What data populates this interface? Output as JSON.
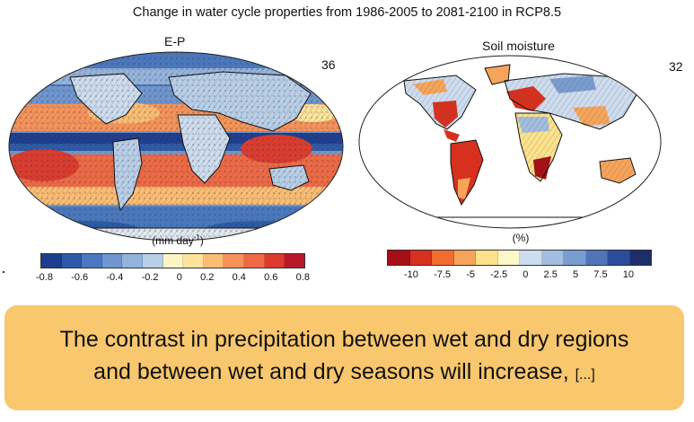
{
  "header": {
    "title": "Change in water cycle properties from 1986-2005 to 2081-2100 in RCP8.5"
  },
  "left_panel": {
    "title": "E-P",
    "number": "36",
    "unit_main": "(mm day",
    "unit_sup": "-1",
    "unit_close": ")",
    "colorbar_colors": [
      "#1f3d8f",
      "#2d5aa8",
      "#4a78bf",
      "#6f96cf",
      "#94b3dc",
      "#b9cfe8",
      "#fbf6c4",
      "#fde39a",
      "#fbbd73",
      "#f7935a",
      "#ee6a45",
      "#dc3b2e",
      "#b8182a"
    ],
    "tick_labels": [
      "-0.8",
      "-0.6",
      "-0.4",
      "-0.2",
      "0",
      "0.2",
      "0.4",
      "0.6",
      "0.8"
    ]
  },
  "right_panel": {
    "title": "Soil moisture",
    "number": "32",
    "unit": "(%)",
    "colorbar_colors": [
      "#a50f15",
      "#d7301f",
      "#f26b2f",
      "#f7a45b",
      "#fde28b",
      "#fbf7c7",
      "#cddcee",
      "#a3bde0",
      "#7a9dd0",
      "#4f75b8",
      "#2b4c9a",
      "#1d2e6b"
    ],
    "tick_labels": [
      "-10",
      "-7.5",
      "-5",
      "-2.5",
      "0",
      "2.5",
      "5",
      "7.5",
      "10"
    ]
  },
  "callout": {
    "line1": "The contrast in precipitation between wet and dry regions",
    "line2": "and between wet and dry seasons will increase,",
    "ellipsis": "[...]"
  }
}
